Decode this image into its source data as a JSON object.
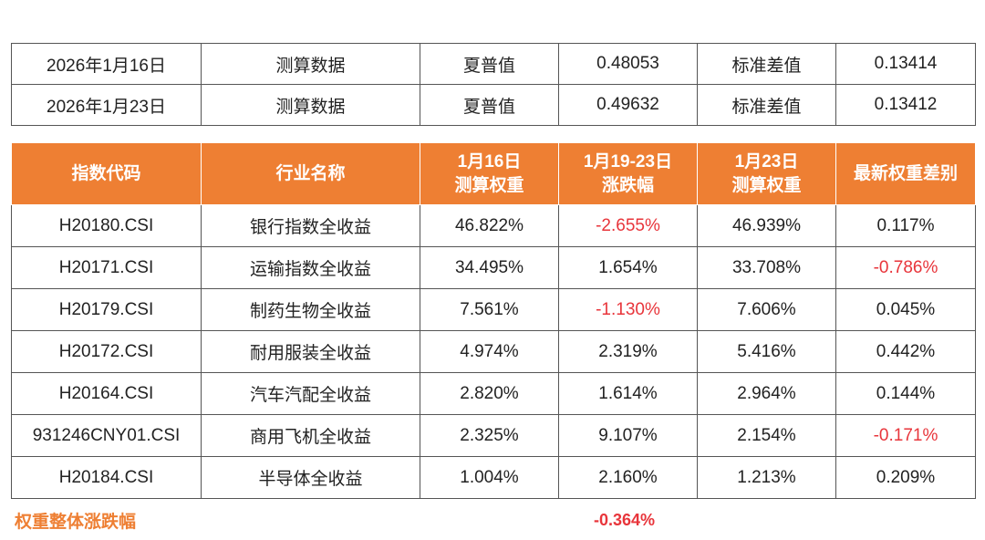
{
  "summary": [
    {
      "date": "2026年1月16日",
      "type": "测算数据",
      "sharpe_label": "夏普值",
      "sharpe": "0.48053",
      "std_label": "标准差值",
      "std": "0.13414"
    },
    {
      "date": "2026年1月23日",
      "type": "测算数据",
      "sharpe_label": "夏普值",
      "sharpe": "0.49632",
      "std_label": "标准差值",
      "std": "0.13412"
    }
  ],
  "headers": [
    "指数代码",
    "行业名称",
    "1月16日\n测算权重",
    "1月19-23日\n涨跌幅",
    "1月23日\n测算权重",
    "最新权重差别"
  ],
  "rows": [
    {
      "code": "H20180.CSI",
      "name": "银行指数全收益",
      "w16": "46.822%",
      "chg": "-2.655%",
      "chg_neg": true,
      "w23": "46.939%",
      "diff": "0.117%",
      "diff_neg": false
    },
    {
      "code": "H20171.CSI",
      "name": "运输指数全收益",
      "w16": "34.495%",
      "chg": "1.654%",
      "chg_neg": false,
      "w23": "33.708%",
      "diff": "-0.786%",
      "diff_neg": true
    },
    {
      "code": "H20179.CSI",
      "name": "制药生物全收益",
      "w16": "7.561%",
      "chg": "-1.130%",
      "chg_neg": true,
      "w23": "7.606%",
      "diff": "0.045%",
      "diff_neg": false
    },
    {
      "code": "H20172.CSI",
      "name": "耐用服装全收益",
      "w16": "4.974%",
      "chg": "2.319%",
      "chg_neg": false,
      "w23": "5.416%",
      "diff": "0.442%",
      "diff_neg": false
    },
    {
      "code": "H20164.CSI",
      "name": "汽车汽配全收益",
      "w16": "2.820%",
      "chg": "1.614%",
      "chg_neg": false,
      "w23": "2.964%",
      "diff": "0.144%",
      "diff_neg": false
    },
    {
      "code": "931246CNY01.CSI",
      "name": "商用飞机全收益",
      "w16": "2.325%",
      "chg": "9.107%",
      "chg_neg": false,
      "w23": "2.154%",
      "diff": "-0.171%",
      "diff_neg": true
    },
    {
      "code": "H20184.CSI",
      "name": "半导体全收益",
      "w16": "1.004%",
      "chg": "2.160%",
      "chg_neg": false,
      "w23": "1.213%",
      "diff": "0.209%",
      "diff_neg": false
    }
  ],
  "footer": {
    "label": "权重整体涨跌幅",
    "value": "-0.364%"
  },
  "colors": {
    "header_bg": "#ee7f33",
    "negative": "#e8353b",
    "footer_label": "#ee7f33"
  }
}
